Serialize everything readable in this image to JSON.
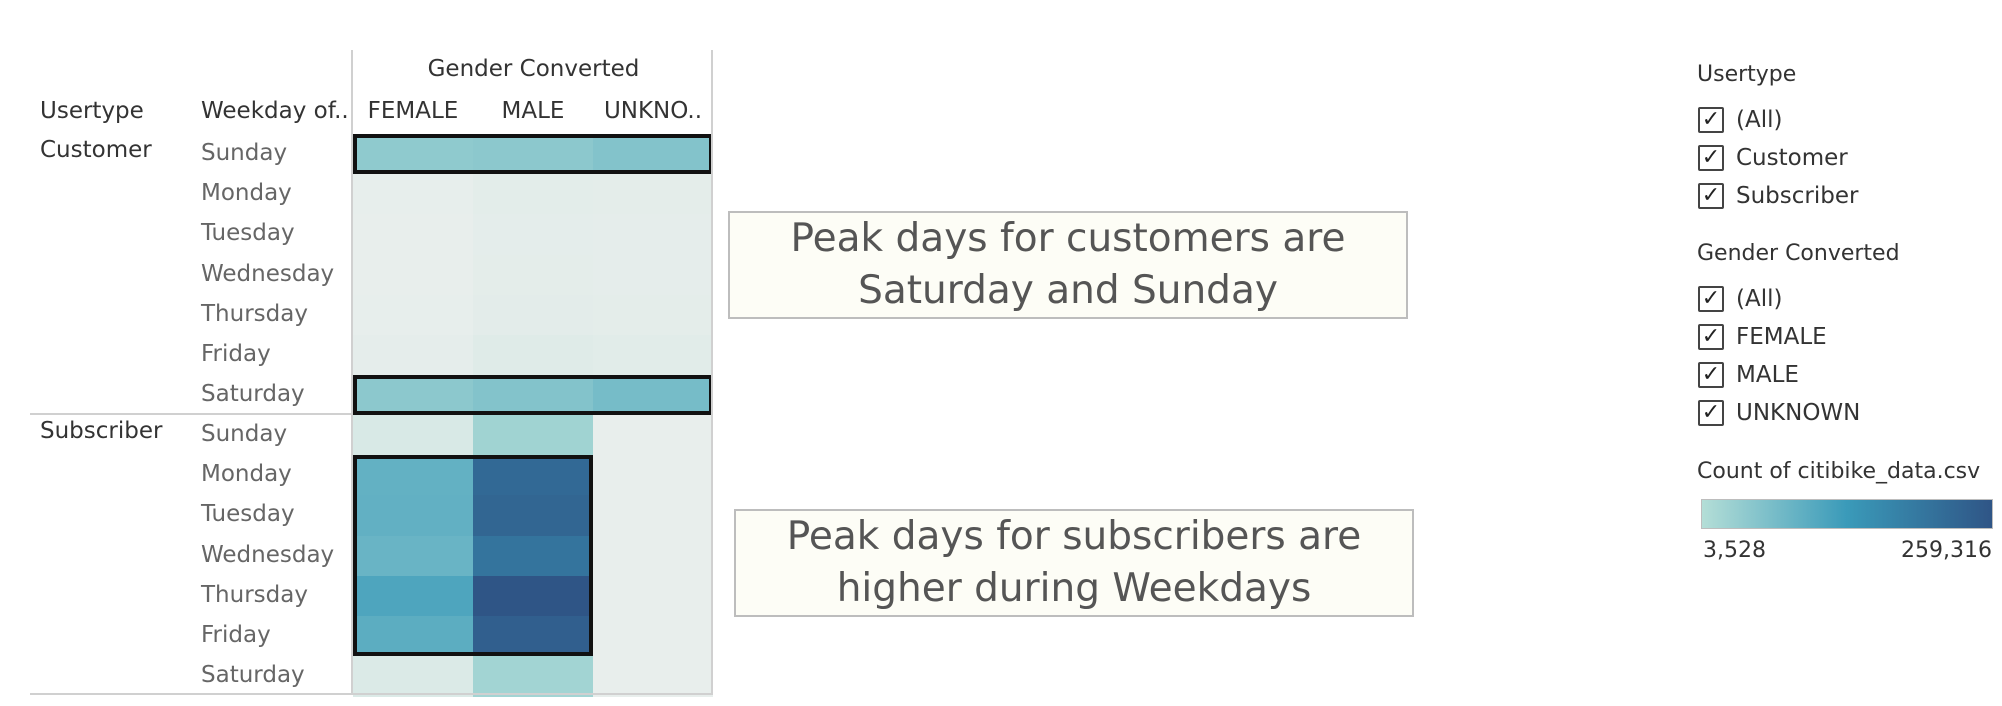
{
  "chart_data": {
    "type": "heatmap",
    "column_header": "Gender Converted",
    "row_headers": [
      "Usertype",
      "Weekday of.."
    ],
    "columns": [
      "FEMALE",
      "MALE",
      "UNKNO.."
    ],
    "groups": [
      {
        "usertype": "Customer",
        "days": [
          "Sunday",
          "Monday",
          "Tuesday",
          "Wednesday",
          "Thursday",
          "Friday",
          "Saturday"
        ],
        "values": [
          [
            42000,
            45000,
            55000
          ],
          [
            3800,
            5200,
            5000
          ],
          [
            3600,
            4800,
            4600
          ],
          [
            3700,
            5000,
            4700
          ],
          [
            3900,
            5300,
            5000
          ],
          [
            4600,
            6600,
            6000
          ],
          [
            45000,
            55000,
            68000
          ]
        ]
      },
      {
        "usertype": "Subscriber",
        "days": [
          "Sunday",
          "Monday",
          "Tuesday",
          "Wednesday",
          "Thursday",
          "Friday",
          "Saturday"
        ],
        "values": [
          [
            9000,
            24000,
            null
          ],
          [
            88000,
            222000,
            null
          ],
          [
            90000,
            228000,
            null
          ],
          [
            82000,
            202000,
            null
          ],
          [
            110000,
            259316,
            null
          ],
          [
            96000,
            240000,
            null
          ],
          [
            8000,
            22000,
            null
          ]
        ]
      }
    ],
    "color_min": 3528,
    "color_max": 259316,
    "highlights": [
      {
        "group": 0,
        "rows": [
          0,
          0
        ],
        "cols": [
          0,
          2
        ]
      },
      {
        "group": 0,
        "rows": [
          6,
          6
        ],
        "cols": [
          0,
          2
        ]
      },
      {
        "group": 1,
        "rows": [
          1,
          5
        ],
        "cols": [
          0,
          1
        ]
      }
    ]
  },
  "annotations": {
    "customers": "Peak days for customers are Saturday and Sunday",
    "subscribers": "Peak days for subscribers are higher during Weekdays"
  },
  "legend": {
    "usertype_title": "Usertype",
    "usertype_items": [
      "(All)",
      "Customer",
      "Subscriber"
    ],
    "gender_title": "Gender Converted",
    "gender_items": [
      "(All)",
      "FEMALE",
      "MALE",
      "UNKNOWN"
    ],
    "color_title": "Count of citibike_data.csv",
    "color_min_label": "3,528",
    "color_max_label": "259,316",
    "check_glyph": "✓",
    "ramp_colors": [
      "#b4ded7",
      "#3a9ab9",
      "#2f5586"
    ]
  }
}
